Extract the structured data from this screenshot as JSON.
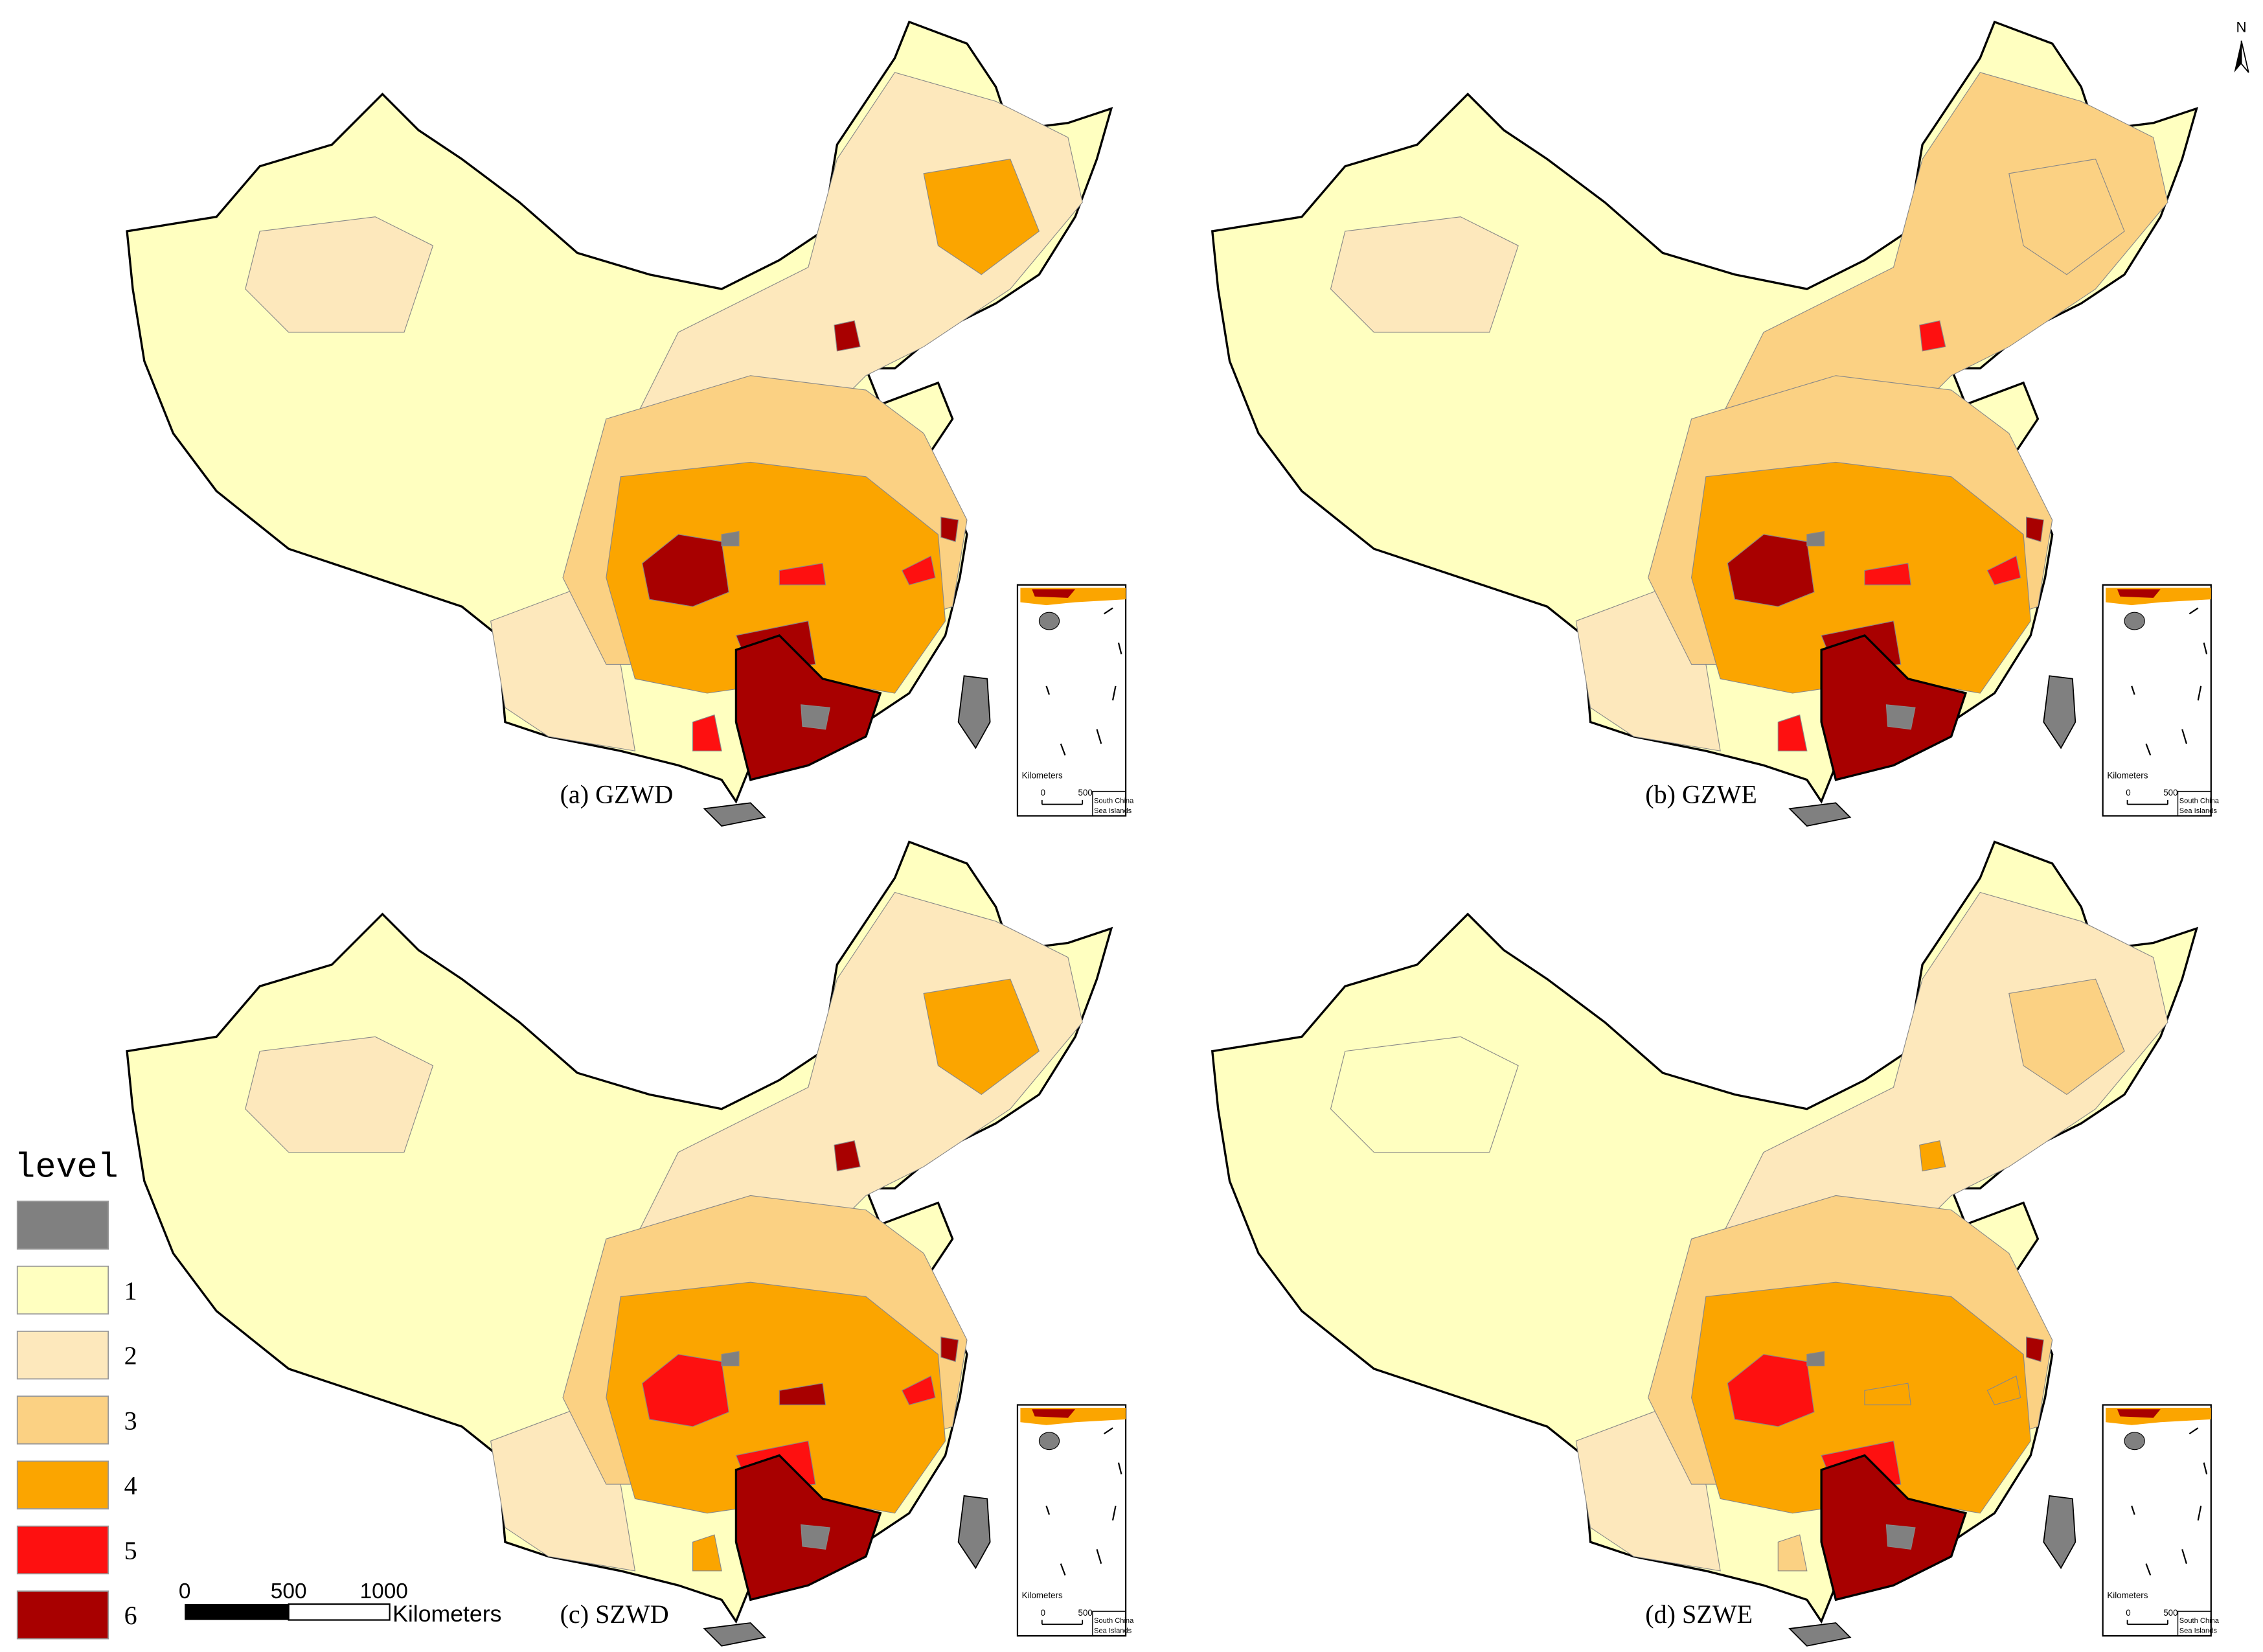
{
  "north": "N",
  "panels": [
    {
      "label": "(a) GZWD"
    },
    {
      "label": "(b) GZWE"
    },
    {
      "label": "(c) SZWD"
    },
    {
      "label": "(d) SZWE"
    }
  ],
  "inset": {
    "unit": "Kilometers",
    "ticks": [
      "0",
      "500"
    ],
    "region": [
      "South China",
      "Sea Islands"
    ]
  },
  "legend": {
    "title": "level",
    "items": [
      {
        "color": "#808080"
      },
      {
        "label": "1",
        "color": "#ffffc0"
      },
      {
        "label": "2",
        "color": "#fde8bc"
      },
      {
        "label": "3",
        "color": "#fbd183"
      },
      {
        "label": "4",
        "color": "#fba500"
      },
      {
        "label": "5",
        "color": "#fe1010"
      },
      {
        "label": "6",
        "color": "#a80000"
      }
    ]
  },
  "scale_bar": {
    "ticks": [
      "0",
      "500",
      "1000"
    ],
    "unit": "Kilometers"
  }
}
